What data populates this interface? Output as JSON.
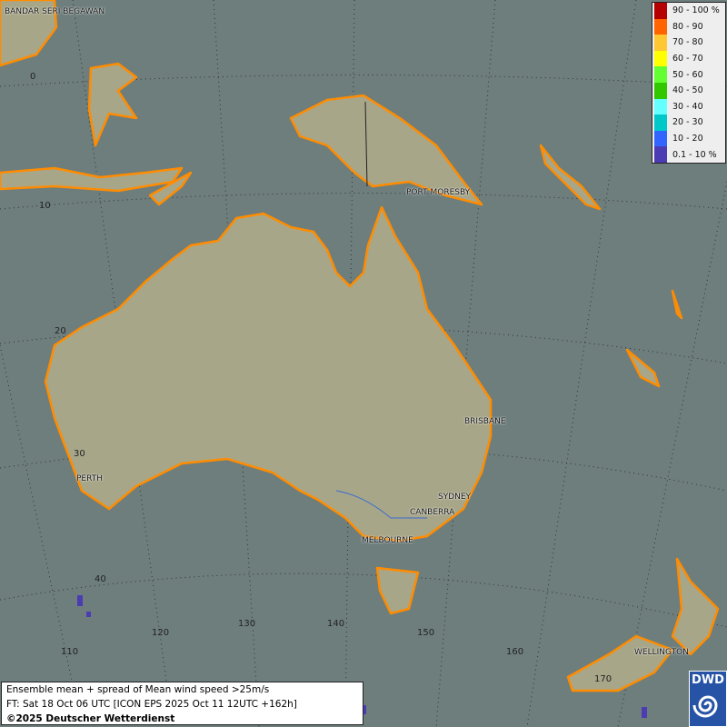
{
  "map": {
    "ocean_color": "#6e7e7d",
    "land_color": "#a8a688",
    "coast_color": "#ff8c00",
    "cities": [
      {
        "name": "BANDAR SERI BEGAWAN"
      },
      {
        "name": "PORT MORESBY"
      },
      {
        "name": "BRISBANE"
      },
      {
        "name": "PERTH"
      },
      {
        "name": "SYDNEY"
      },
      {
        "name": "CANBERRA"
      },
      {
        "name": "MELBOURNE"
      },
      {
        "name": "WELLINGTON"
      }
    ],
    "latitude_labels": [
      "0",
      "10",
      "20",
      "30",
      "40"
    ],
    "longitude_labels": [
      "110",
      "120",
      "130",
      "140",
      "150",
      "160",
      "170"
    ]
  },
  "legend": {
    "items": [
      {
        "label": "90 - 100 %",
        "color": "#b40000"
      },
      {
        "label": "80 - 90",
        "color": "#ff6400"
      },
      {
        "label": "70 - 80",
        "color": "#ffc832"
      },
      {
        "label": "60 - 70",
        "color": "#ffff00"
      },
      {
        "label": "50 - 60",
        "color": "#64ff32"
      },
      {
        "label": "40 - 50",
        "color": "#32c800"
      },
      {
        "label": "30 - 40",
        "color": "#64ffff"
      },
      {
        "label": "20 - 30",
        "color": "#00c8c8"
      },
      {
        "label": "10 - 20",
        "color": "#3264ff"
      },
      {
        "label": "0.1 - 10 %",
        "color": "#4b3cb4"
      }
    ]
  },
  "info": {
    "line1": "Ensemble mean + spread of Mean wind speed >25m/s",
    "line2": "FT: Sat 18 Oct 06 UTC [ICON EPS 2025 Oct 11 12UTC +162h]",
    "line3": "©2025 Deutscher Wetterdienst"
  },
  "logo": {
    "text": "DWD"
  }
}
